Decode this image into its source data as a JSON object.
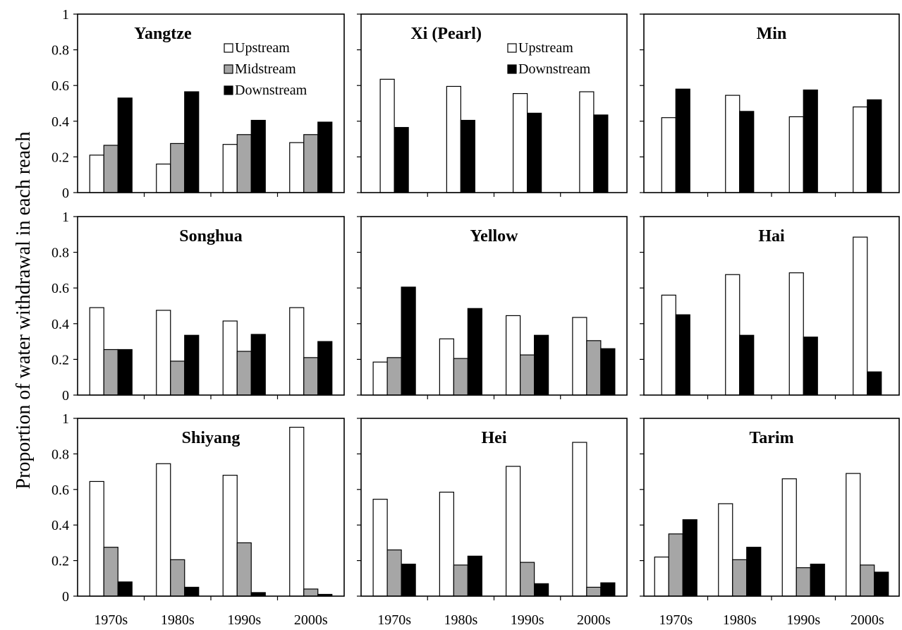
{
  "chart_data": {
    "type": "bar",
    "ylabel": "Proportion of water withdrawal in each reach",
    "categories": [
      "1970s",
      "1980s",
      "1990s",
      "2000s"
    ],
    "ylim": [
      0,
      1
    ],
    "yticks": [
      "0",
      "0.2",
      "0.4",
      "0.6",
      "0.8",
      "1"
    ],
    "grid": false,
    "series_colors": {
      "Upstream": "#ffffff",
      "Midstream": "#a6a6a6",
      "Downstream": "#000000"
    },
    "panels": [
      {
        "title": "Yangtze",
        "legend": [
          "Upstream",
          "Midstream",
          "Downstream"
        ],
        "series": [
          {
            "name": "Upstream",
            "values": [
              0.21,
              0.16,
              0.27,
              0.28
            ]
          },
          {
            "name": "Midstream",
            "values": [
              0.265,
              0.275,
              0.325,
              0.325
            ]
          },
          {
            "name": "Downstream",
            "values": [
              0.53,
              0.565,
              0.405,
              0.395
            ]
          }
        ]
      },
      {
        "title": "Xi (Pearl)",
        "legend": [
          "Upstream",
          "Downstream"
        ],
        "series": [
          {
            "name": "Upstream",
            "values": [
              0.635,
              0.595,
              0.555,
              0.565
            ]
          },
          {
            "name": "Downstream",
            "values": [
              0.365,
              0.405,
              0.445,
              0.435
            ]
          }
        ]
      },
      {
        "title": "Min",
        "legend": [],
        "series": [
          {
            "name": "Upstream",
            "values": [
              0.42,
              0.545,
              0.425,
              0.48
            ]
          },
          {
            "name": "Downstream",
            "values": [
              0.58,
              0.455,
              0.575,
              0.52
            ]
          }
        ]
      },
      {
        "title": "Songhua",
        "legend": [],
        "series": [
          {
            "name": "Upstream",
            "values": [
              0.49,
              0.475,
              0.415,
              0.49
            ]
          },
          {
            "name": "Midstream",
            "values": [
              0.255,
              0.19,
              0.245,
              0.21
            ]
          },
          {
            "name": "Downstream",
            "values": [
              0.255,
              0.335,
              0.34,
              0.3
            ]
          }
        ]
      },
      {
        "title": "Yellow",
        "legend": [],
        "series": [
          {
            "name": "Upstream",
            "values": [
              0.185,
              0.315,
              0.445,
              0.435
            ]
          },
          {
            "name": "Midstream",
            "values": [
              0.21,
              0.205,
              0.225,
              0.305
            ]
          },
          {
            "name": "Downstream",
            "values": [
              0.605,
              0.485,
              0.335,
              0.26
            ]
          }
        ]
      },
      {
        "title": "Hai",
        "legend": [],
        "series": [
          {
            "name": "Upstream",
            "values": [
              0.56,
              0.675,
              0.685,
              0.885
            ]
          },
          {
            "name": "Downstream",
            "values": [
              0.45,
              0.335,
              0.325,
              0.13
            ]
          }
        ]
      },
      {
        "title": "Shiyang",
        "legend": [],
        "series": [
          {
            "name": "Upstream",
            "values": [
              0.645,
              0.745,
              0.68,
              0.95
            ]
          },
          {
            "name": "Midstream",
            "values": [
              0.275,
              0.205,
              0.3,
              0.04
            ]
          },
          {
            "name": "Downstream",
            "values": [
              0.08,
              0.05,
              0.02,
              0.01
            ]
          }
        ]
      },
      {
        "title": "Hei",
        "legend": [],
        "series": [
          {
            "name": "Upstream",
            "values": [
              0.545,
              0.585,
              0.73,
              0.865
            ]
          },
          {
            "name": "Midstream",
            "values": [
              0.26,
              0.175,
              0.19,
              0.05
            ]
          },
          {
            "name": "Downstream",
            "values": [
              0.18,
              0.225,
              0.07,
              0.075
            ]
          }
        ]
      },
      {
        "title": "Tarim",
        "legend": [],
        "series": [
          {
            "name": "Upstream",
            "values": [
              0.22,
              0.52,
              0.66,
              0.69
            ]
          },
          {
            "name": "Midstream",
            "values": [
              0.35,
              0.205,
              0.16,
              0.175
            ]
          },
          {
            "name": "Downstream",
            "values": [
              0.43,
              0.275,
              0.18,
              0.135
            ]
          }
        ]
      }
    ]
  }
}
